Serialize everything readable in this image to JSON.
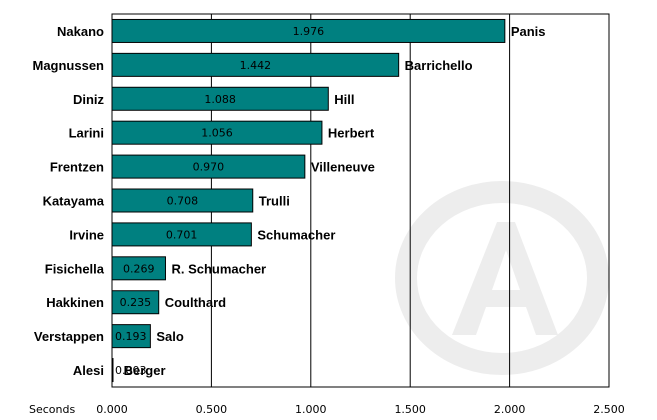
{
  "chart_data": {
    "type": "bar",
    "orientation": "horizontal",
    "categories": [
      "Nakano",
      "Magnussen",
      "Diniz",
      "Larini",
      "Frentzen",
      "Katayama",
      "Irvine",
      "Fisichella",
      "Hakkinen",
      "Verstappen",
      "Alesi"
    ],
    "values": [
      1.976,
      1.442,
      1.088,
      1.056,
      0.97,
      0.708,
      0.701,
      0.269,
      0.235,
      0.193,
      0.003
    ],
    "value_labels": [
      "1.976",
      "1.442",
      "1.088",
      "1.056",
      "0.970",
      "0.708",
      "0.701",
      "0.269",
      "0.235",
      "0.193",
      "0.003"
    ],
    "bar_end_labels": [
      "Panis",
      "Barrichello",
      "Hill",
      "Herbert",
      "Villeneuve",
      "Trulli",
      "Schumacher",
      "R. Schumacher",
      "Coulthard",
      "Salo",
      "Berger"
    ],
    "xlabel": "Seconds",
    "xlim": [
      0,
      2.5
    ],
    "xticks": [
      "0.000",
      "0.500",
      "1.000",
      "1.500",
      "2.000",
      "2.500"
    ],
    "grid": "vertical",
    "bar_color": "#008080",
    "watermark_color": "#e8e8e8"
  }
}
